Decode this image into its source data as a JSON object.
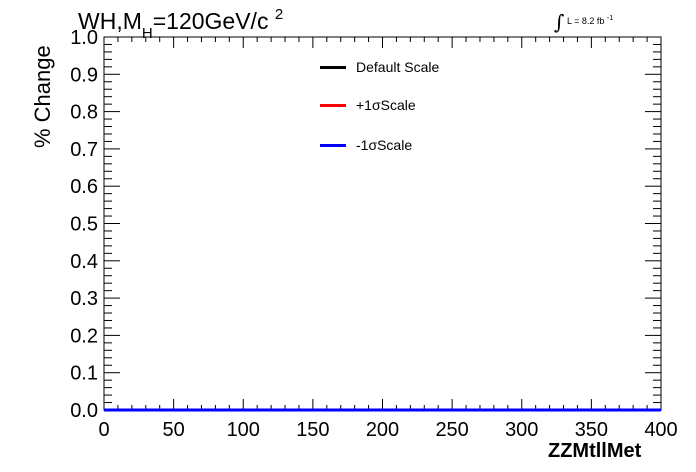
{
  "title": {
    "main": "WH,M",
    "sub": "H",
    "mid": "=120GeV/c",
    "sup": "2"
  },
  "luminosity": {
    "symbol": "∫",
    "text": "L = 8.2 fb",
    "exp": "-1"
  },
  "chart_data": {
    "type": "line",
    "xlabel": "ZZMtllMet",
    "ylabel": "% Change",
    "xlim": [
      0,
      400
    ],
    "ylim": [
      0,
      1.0
    ],
    "xticks": [
      "0",
      "50",
      "100",
      "150",
      "200",
      "250",
      "300",
      "350",
      "400"
    ],
    "yticks": [
      "0.0",
      "0.1",
      "0.2",
      "0.3",
      "0.4",
      "0.5",
      "0.6",
      "0.7",
      "0.8",
      "0.9",
      "1.0"
    ],
    "grid": false,
    "legend_position": "top-center",
    "series": [
      {
        "name": "Default Scale",
        "color": "#000000",
        "x": [
          0,
          400
        ],
        "y": [
          0,
          0
        ]
      },
      {
        "name": "+1σScale",
        "color": "#ff0000",
        "x": [
          0,
          400
        ],
        "y": [
          0,
          0
        ]
      },
      {
        "name": "-1σScale",
        "color": "#0000ff",
        "x": [
          0,
          400
        ],
        "y": [
          0,
          0
        ]
      }
    ]
  }
}
